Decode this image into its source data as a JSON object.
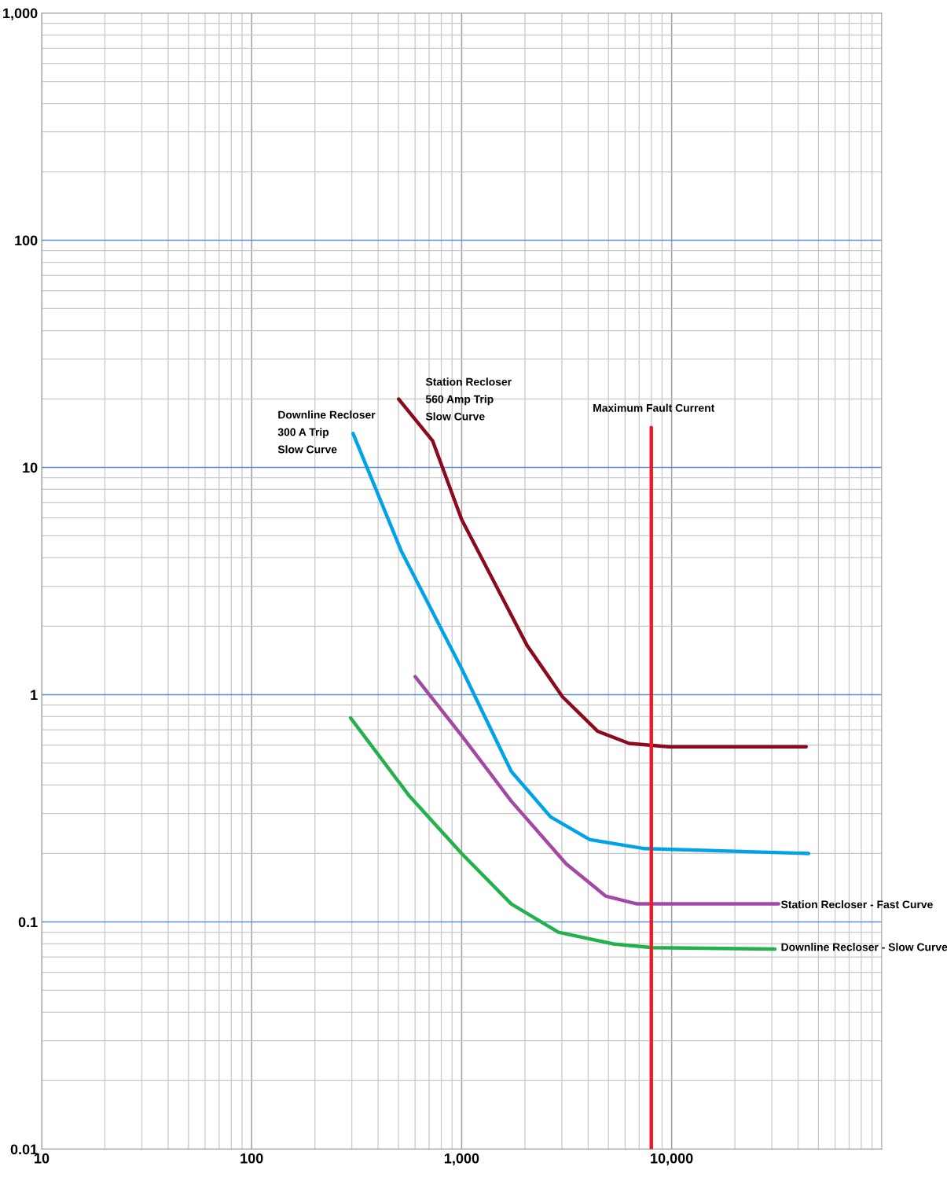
{
  "chart_data": {
    "type": "line",
    "log": "xy",
    "grid": true,
    "xlim": [
      10,
      100000
    ],
    "ylim": [
      0.01,
      1000
    ],
    "xticks": [
      10,
      100,
      {
        "value": 1000,
        "label": "1,000"
      },
      {
        "value": 10000,
        "label": "10,000"
      }
    ],
    "yticks": [
      0.01,
      0.1,
      1,
      10,
      100,
      {
        "value": 1000,
        "label": "1,000"
      }
    ],
    "series": [
      {
        "color": "#8b0a1e",
        "x": [
          501,
          727,
          1000,
          2046,
          3017,
          4446,
          6280,
          9700,
          43700
        ],
        "values": [
          20,
          13.1,
          5.9,
          1.65,
          0.98,
          0.69,
          0.61,
          0.59,
          0.59
        ]
      },
      {
        "color": "#00a2e8",
        "x": [
          304,
          515,
          1000,
          1722,
          2650,
          4078,
          7460,
          44900
        ],
        "values": [
          14.1,
          4.3,
          1.3,
          0.46,
          0.29,
          0.23,
          0.21,
          0.2
        ]
      },
      {
        "color": "#a349a4",
        "x": [
          601,
          1000,
          1722,
          3148,
          4844,
          6840,
          32300
        ],
        "values": [
          1.2,
          0.66,
          0.34,
          0.18,
          0.13,
          0.12,
          0.12
        ]
      },
      {
        "color": "#22b14c",
        "x": [
          296,
          561,
          1000,
          1722,
          2890,
          5280,
          8130,
          31000
        ],
        "values": [
          0.79,
          0.36,
          0.2,
          0.12,
          0.09,
          0.08,
          0.077,
          0.076
        ]
      },
      {
        "color": "#ed1c24",
        "x": [
          8000,
          8000
        ],
        "values": [
          15,
          0.01
        ]
      }
    ],
    "annotations": [
      "Downline Recloser\n300 A Trip\nSlow Curve",
      "Station Recloser\n560 Amp Trip\nSlow Curve",
      "Maximum Fault Current",
      "Station Recloser - Fast Curve",
      "Downline Recloser - Slow Curve"
    ]
  }
}
